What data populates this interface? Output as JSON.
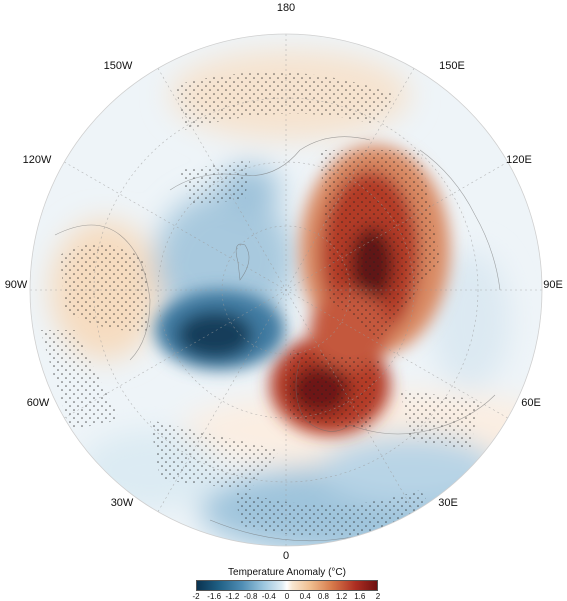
{
  "map": {
    "projection": "north-polar-stereographic",
    "longitude_labels": [
      {
        "text": "180",
        "lon": 180
      },
      {
        "text": "150E",
        "lon": 150
      },
      {
        "text": "120E",
        "lon": 120
      },
      {
        "text": "90E",
        "lon": 90
      },
      {
        "text": "60E",
        "lon": 60
      },
      {
        "text": "30E",
        "lon": 30
      },
      {
        "text": "0",
        "lon": 0
      },
      {
        "text": "30W",
        "lon": -30
      },
      {
        "text": "60W",
        "lon": -60
      },
      {
        "text": "90W",
        "lon": -90
      },
      {
        "text": "120W",
        "lon": -120
      },
      {
        "text": "150W",
        "lon": -150
      }
    ],
    "stippling": "significance",
    "colormap": "blue-white-red"
  },
  "colorbar": {
    "title": "Temperature Anomaly (°C)",
    "ticks": [
      "-2",
      "-1.6",
      "-1.2",
      "-0.8",
      "-0.4",
      "0",
      "0.4",
      "0.8",
      "1.2",
      "1.6",
      "2"
    ],
    "min": -2,
    "max": 2
  }
}
